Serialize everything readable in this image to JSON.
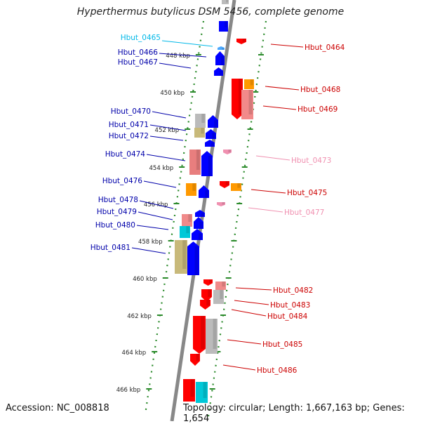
{
  "title": "Hyperthermus butylicus DSM 5456, complete genome",
  "footer": {
    "accession": "Accession: NC_008818",
    "topology": "Topology: circular; Length: 1,667,163 bp; Genes: 1,654"
  },
  "colors": {
    "forward_cds": "#0000ff",
    "reverse_cds": "#ff0000",
    "trna": "#ff9900",
    "pseudo_grey": "#bbbbbb",
    "khaki": "#c8b97a",
    "cyan": "#00c8d8",
    "pink": "#f08080",
    "ruler": "#2a8a2a",
    "backbone": "#888888"
  },
  "ticks": [
    "448 kbp",
    "450 kbp",
    "452 kbp",
    "454 kbp",
    "456 kbp",
    "458 kbp",
    "460 kbp",
    "462 kbp",
    "464 kbp",
    "466 kbp"
  ],
  "genes": [
    {
      "label": "Hbut_0464",
      "strand": "reverse",
      "color": "#cc0000"
    },
    {
      "label": "Hbut_0465",
      "strand": "forward",
      "color": "#00b8e8"
    },
    {
      "label": "Hbut_0466",
      "strand": "forward",
      "color": "#0000aa"
    },
    {
      "label": "Hbut_0467",
      "strand": "forward",
      "color": "#0000aa"
    },
    {
      "label": "Hbut_0468",
      "strand": "reverse",
      "color": "#cc0000"
    },
    {
      "label": "Hbut_0469",
      "strand": "reverse",
      "color": "#cc0000"
    },
    {
      "label": "Hbut_0470",
      "strand": "forward",
      "color": "#0000aa"
    },
    {
      "label": "Hbut_0471",
      "strand": "forward",
      "color": "#0000aa"
    },
    {
      "label": "Hbut_0472",
      "strand": "forward",
      "color": "#0000aa"
    },
    {
      "label": "Hbut_0473",
      "strand": "reverse",
      "color": "#f090b0"
    },
    {
      "label": "Hbut_0474",
      "strand": "forward",
      "color": "#0000aa"
    },
    {
      "label": "Hbut_0475",
      "strand": "reverse",
      "color": "#cc0000"
    },
    {
      "label": "Hbut_0476",
      "strand": "forward",
      "color": "#0000aa"
    },
    {
      "label": "Hbut_0477",
      "strand": "reverse",
      "color": "#f090b0"
    },
    {
      "label": "Hbut_0478",
      "strand": "forward",
      "color": "#0000aa"
    },
    {
      "label": "Hbut_0479",
      "strand": "forward",
      "color": "#0000aa"
    },
    {
      "label": "Hbut_0480",
      "strand": "forward",
      "color": "#0000aa"
    },
    {
      "label": "Hbut_0481",
      "strand": "forward",
      "color": "#0000aa"
    },
    {
      "label": "Hbut_0482",
      "strand": "reverse",
      "color": "#cc0000"
    },
    {
      "label": "Hbut_0483",
      "strand": "reverse",
      "color": "#cc0000"
    },
    {
      "label": "Hbut_0484",
      "strand": "reverse",
      "color": "#cc0000"
    },
    {
      "label": "Hbut_0485",
      "strand": "reverse",
      "color": "#cc0000"
    },
    {
      "label": "Hbut_0486",
      "strand": "reverse",
      "color": "#cc0000"
    }
  ]
}
